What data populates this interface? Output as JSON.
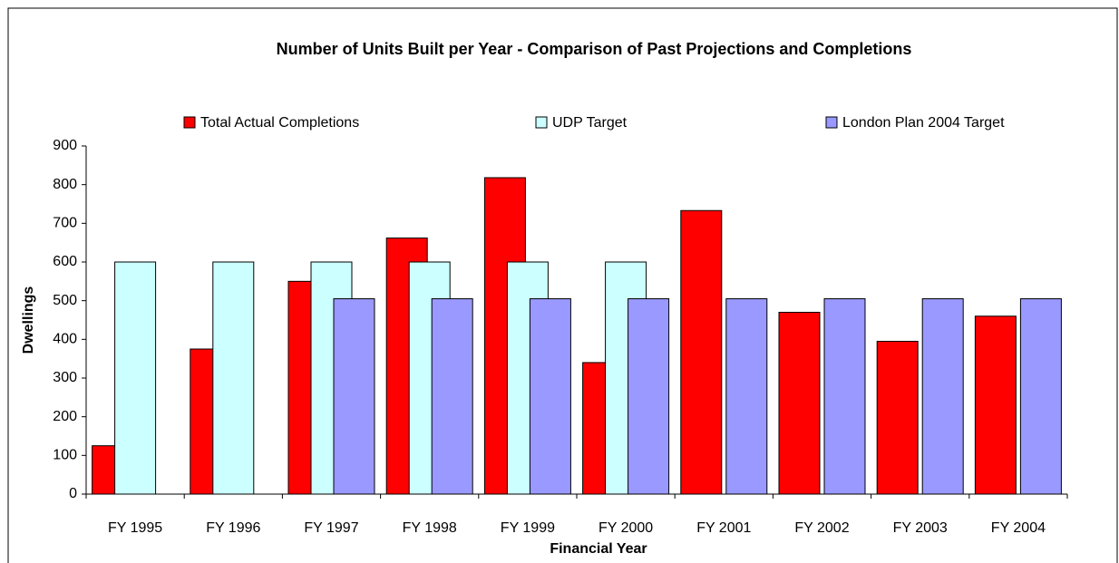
{
  "chart_data": {
    "type": "bar",
    "title": "Number of Units Built per Year - Comparison of Past Projections and Completions",
    "x_label": "Financial Year",
    "y_label": "Dwellings",
    "categories": [
      "FY 1995",
      "FY 1996",
      "FY 1997",
      "FY 1998",
      "FY 1999",
      "FY 2000",
      "FY 2001",
      "FY 2002",
      "FY 2003",
      "FY 2004"
    ],
    "series": [
      {
        "name": "Total Actual Completions",
        "color": "#ff0000",
        "values": [
          125,
          375,
          550,
          662,
          818,
          340,
          733,
          470,
          395,
          460
        ]
      },
      {
        "name": "UDP Target",
        "color": "#ccffff",
        "values": [
          600,
          600,
          600,
          600,
          600,
          600,
          null,
          null,
          null,
          null
        ]
      },
      {
        "name": "London Plan 2004 Target",
        "color": "#9999ff",
        "values": [
          null,
          null,
          505,
          505,
          505,
          505,
          505,
          505,
          505,
          505
        ]
      }
    ],
    "ylim": [
      0,
      900
    ],
    "yticks": [
      0,
      100,
      200,
      300,
      400,
      500,
      600,
      700,
      800,
      900
    ],
    "legend": "top"
  }
}
